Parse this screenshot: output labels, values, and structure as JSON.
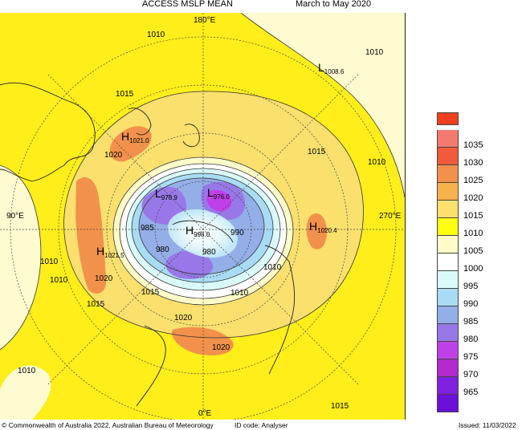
{
  "header": {
    "title": "ACCESS MSLP MEAN",
    "period": "March to May 2020"
  },
  "map": {
    "projection": "south-polar-stereographic",
    "meridian_labels": [
      "180°E",
      "90°E",
      "270°E",
      "0°E"
    ],
    "contour_labels": [
      "1010",
      "1010",
      "1015",
      "1020",
      "1015",
      "1010",
      "1010",
      "1010",
      "1020",
      "1015",
      "1015",
      "1020",
      "1020",
      "1010",
      "1015",
      "1010",
      "1010",
      "985",
      "990",
      "980",
      "980",
      "1015"
    ],
    "systems": [
      {
        "type": "H",
        "value": "1021.0"
      },
      {
        "type": "L",
        "value": "1008.6"
      },
      {
        "type": "L",
        "value": "978.9"
      },
      {
        "type": "L",
        "value": "976.0"
      },
      {
        "type": "H",
        "value": "998.0"
      },
      {
        "type": "H",
        "value": "1020.4"
      },
      {
        "type": "H",
        "value": "1021.5"
      }
    ]
  },
  "legend": {
    "top_color": "#f04020",
    "items": [
      {
        "value": "1035",
        "color": "#f47a70"
      },
      {
        "value": "1030",
        "color": "#f25a3c"
      },
      {
        "value": "1025",
        "color": "#f2914b"
      },
      {
        "value": "1020",
        "color": "#f7b24b"
      },
      {
        "value": "1015",
        "color": "#fbe06e"
      },
      {
        "value": "1010",
        "color": "#ffff10"
      },
      {
        "value": "1005",
        "color": "#fffcc8"
      },
      {
        "value": "1000",
        "color": "#ffffff"
      },
      {
        "value": "995",
        "color": "#dafafa"
      },
      {
        "value": "990",
        "color": "#a8dcf4"
      },
      {
        "value": "985",
        "color": "#94aee8"
      },
      {
        "value": "980",
        "color": "#9878e8"
      },
      {
        "value": "975",
        "color": "#c040e8"
      },
      {
        "value": "970",
        "color": "#b42acd"
      },
      {
        "value": "965",
        "color": "#8020e0"
      }
    ],
    "bottom_color": "#6a10d8"
  },
  "footer": {
    "copyright": "© Commonwealth of Australia 2022, Australian Bureau of Meteorology",
    "id_code": "ID code: Analyser",
    "issued": "Issued: 11/03/2022"
  }
}
